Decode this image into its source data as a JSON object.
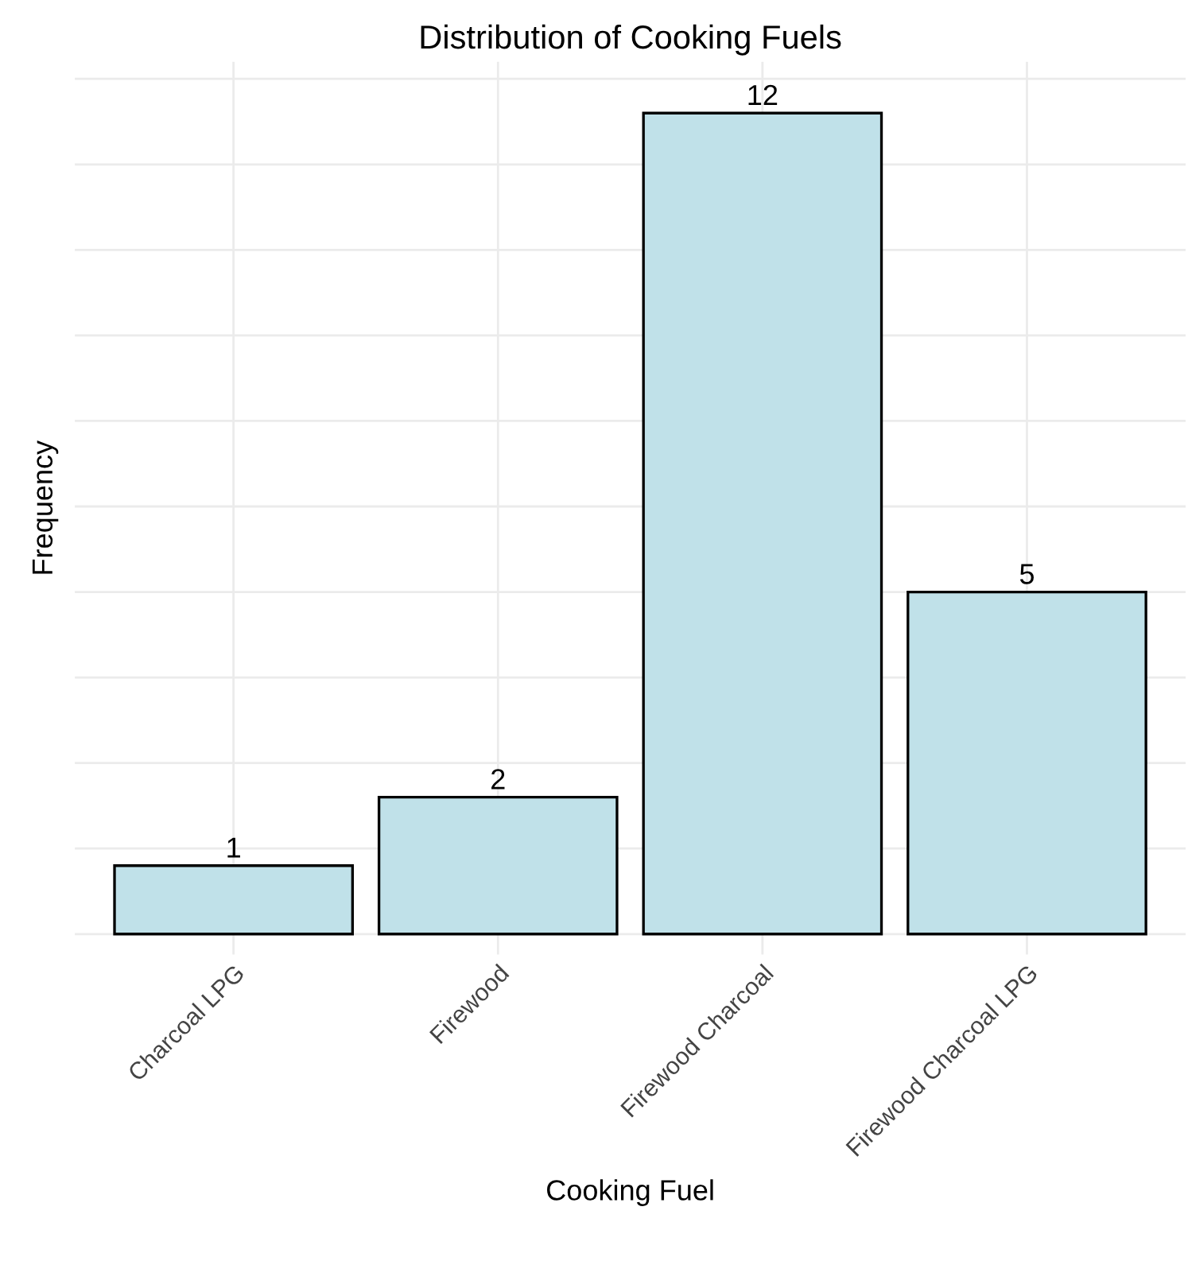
{
  "chart_data": {
    "type": "bar",
    "title": "Distribution of Cooking Fuels",
    "xlabel": "Cooking Fuel",
    "ylabel": "Frequency",
    "categories": [
      "Charcoal LPG",
      "Firewood",
      "Firewood Charcoal",
      "Firewood Charcoal LPG"
    ],
    "values": [
      1,
      2,
      12,
      5
    ],
    "color": "#c0e1e9",
    "data_labels": true,
    "ylim": [
      -0.3,
      12.75
    ],
    "yticks": [
      {
        "value": 0,
        "label": null
      },
      {
        "value": 1.25,
        "label": null
      },
      {
        "value": 2.5,
        "label": null
      },
      {
        "value": 3.75,
        "label": null
      },
      {
        "value": 5,
        "label": null
      },
      {
        "value": 6.25,
        "label": null
      },
      {
        "value": 7.5,
        "label": null
      },
      {
        "value": 8.75,
        "label": null
      },
      {
        "value": 10,
        "label": null
      },
      {
        "value": 11.25,
        "label": null
      },
      {
        "value": 12.5,
        "label": null
      }
    ],
    "tick_labels": "x",
    "grid": true,
    "legend": false
  }
}
